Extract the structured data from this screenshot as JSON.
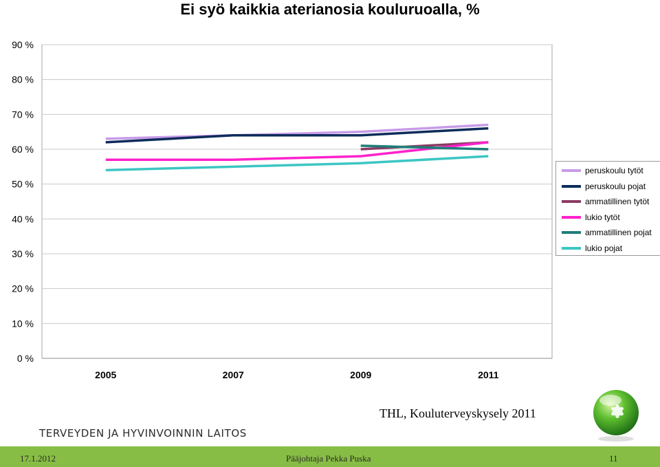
{
  "title": "Ei syö kaikkia aterianosia kouluruoalla, %",
  "chart_data": {
    "type": "line",
    "x": [
      "2005",
      "2007",
      "2009",
      "2011"
    ],
    "ytick_labels": [
      "0 %",
      "10 %",
      "20 %",
      "30 %",
      "40 %",
      "50 %",
      "60 %",
      "70 %",
      "80 %",
      "90 %"
    ],
    "ylim": [
      0,
      90
    ],
    "grid": true,
    "legend_position": "right",
    "series": [
      {
        "name": "peruskoulu tytöt",
        "color": "#c79be8",
        "values": [
          63,
          64,
          65,
          67
        ]
      },
      {
        "name": "peruskoulu pojat",
        "color": "#0d2c5a",
        "values": [
          62,
          64,
          64,
          66
        ]
      },
      {
        "name": "ammatillinen tytöt",
        "color": "#8b3a64",
        "values": [
          null,
          null,
          60,
          62
        ]
      },
      {
        "name": "lukio tytöt",
        "color": "#ff22cc",
        "values": [
          57,
          57,
          58,
          62
        ]
      },
      {
        "name": "ammatillinen pojat",
        "color": "#1f7d78",
        "values": [
          null,
          null,
          61,
          60
        ]
      },
      {
        "name": "lukio pojat",
        "color": "#3cc6c3",
        "values": [
          54,
          55,
          56,
          58
        ]
      }
    ]
  },
  "source_text": "THL, Kouluterveyskysely 2011",
  "org_name": "TERVEYDEN JA HYVINVOINNIN LAITOS",
  "footer": {
    "date": "17.1.2012",
    "presenter": "Pääjohtaja Pekka Puska",
    "page": "11"
  },
  "colors": {
    "footer_bar": "#88bd45",
    "logo_green": "#3c9a2c"
  },
  "logo": {
    "icon": "thl-leaf-globe-icon"
  }
}
